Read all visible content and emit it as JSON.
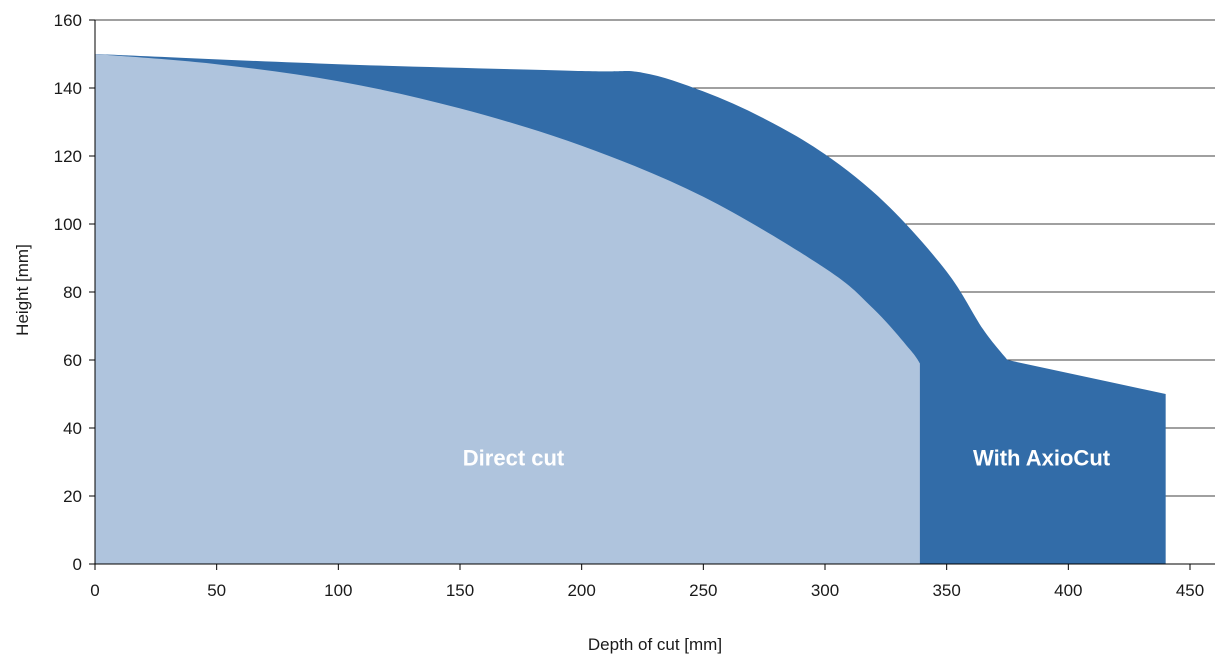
{
  "chart_data": {
    "type": "area",
    "xlabel": "Depth of cut [mm]",
    "ylabel": "Height [mm]",
    "xlim": [
      0,
      450
    ],
    "ylim": [
      0,
      160
    ],
    "x_ticks": [
      0,
      50,
      100,
      150,
      200,
      250,
      300,
      350,
      400,
      450
    ],
    "y_ticks": [
      0,
      20,
      40,
      60,
      80,
      100,
      120,
      140,
      160
    ],
    "grid": "horizontal",
    "series": [
      {
        "name": "With AxioCut",
        "color": "#326ca8",
        "points": [
          [
            0,
            150
          ],
          [
            100,
            147
          ],
          [
            200,
            145
          ],
          [
            225,
            144.5
          ],
          [
            250,
            139
          ],
          [
            275,
            131
          ],
          [
            300,
            120.5
          ],
          [
            325,
            106
          ],
          [
            350,
            86
          ],
          [
            365,
            69
          ],
          [
            375,
            60
          ],
          [
            440,
            50
          ],
          [
            440,
            0
          ]
        ]
      },
      {
        "name": "Direct cut",
        "color": "#afc4dd",
        "points": [
          [
            0,
            150
          ],
          [
            50,
            147
          ],
          [
            100,
            142
          ],
          [
            150,
            134
          ],
          [
            200,
            123
          ],
          [
            250,
            108
          ],
          [
            300,
            87
          ],
          [
            320,
            75
          ],
          [
            335,
            63
          ],
          [
            339,
            59
          ],
          [
            339,
            0
          ]
        ]
      }
    ]
  }
}
